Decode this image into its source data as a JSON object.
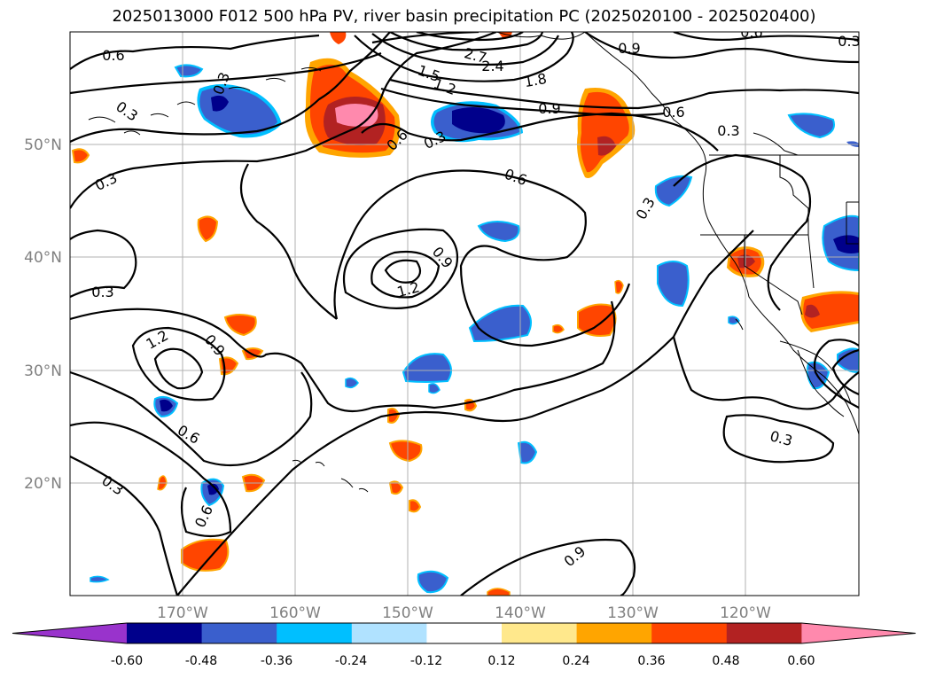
{
  "title": "2025013000 F012 500 hPa PV, river basin precipitation PC (2025020100 - 2025020400)",
  "map": {
    "lon_range": [
      -180,
      -110
    ],
    "lat_range": [
      10,
      60
    ],
    "lat_labels": [
      "50°N",
      "40°N",
      "30°N",
      "20°N"
    ],
    "lon_labels": [
      "170°W",
      "160°W",
      "150°W",
      "140°W",
      "130°W",
      "120°W"
    ],
    "gridlines": true,
    "contour_labels": [
      "0.6",
      "0.3",
      "0.3",
      "0.3",
      "0.6",
      "0.9",
      "1.2",
      "1.5",
      "1.8",
      "2.4",
      "2.7",
      "0.9",
      "0.6",
      "0.3",
      "0.6",
      "0.9",
      "1.2",
      "0.3",
      "1.2",
      "0.9",
      "0.6",
      "0.3",
      "0.6",
      "0.3",
      "0.3",
      "0.3",
      "0.9",
      "0.6",
      "0.3"
    ]
  },
  "colorbar": {
    "ticks": [
      "-0.60",
      "-0.48",
      "-0.36",
      "-0.24",
      "-0.12",
      "0.12",
      "0.24",
      "0.36",
      "0.48",
      "0.60"
    ],
    "colors": [
      "#9933cc",
      "#00008b",
      "#3a5fcd",
      "#00bfff",
      "#b0e2ff",
      "#ffffff",
      "#ffe88c",
      "#ffa500",
      "#ff4500",
      "#b22222",
      "#ff89ad"
    ]
  },
  "colors": {
    "contour": "#000000",
    "coast": "#000000",
    "grid": "#b0b0b0",
    "neg_dark": "#00008b",
    "neg_mid": "#3a5fcd",
    "neg_light": "#00bfff",
    "pos_light": "#ffe88c",
    "pos_orange": "#ffa500",
    "pos_red": "#ff4500",
    "pos_dark": "#b22222",
    "pos_pink": "#ff89ad"
  }
}
